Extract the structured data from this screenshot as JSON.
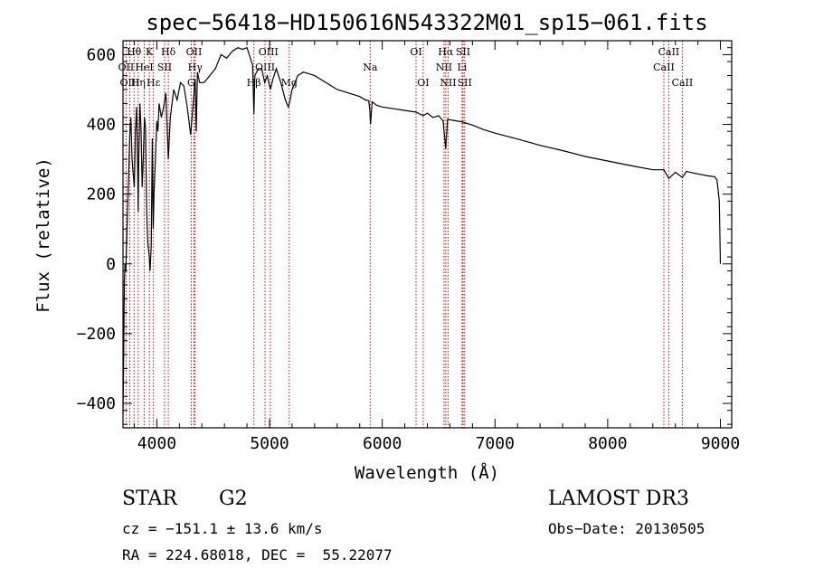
{
  "chart_data": {
    "type": "line",
    "title": "spec−56418−HD150616N543322M01_sp15−061.fits",
    "xlabel": "Wavelength (Å)",
    "ylabel": "Flux (relative)",
    "xlim": [
      3700,
      9100
    ],
    "ylim": [
      -470,
      640
    ],
    "xticks": [
      4000,
      5000,
      6000,
      7000,
      8000,
      9000
    ],
    "xtick_labels": [
      "4000",
      "5000",
      "6000",
      "7000",
      "8000",
      "9000"
    ],
    "yticks": [
      -400,
      -200,
      0,
      200,
      400,
      600
    ],
    "ytick_labels": [
      "−400",
      "−200",
      "0",
      "200",
      "400",
      "600"
    ],
    "series": [
      {
        "name": "spectrum",
        "x": [
          3700,
          3705,
          3712,
          3718,
          3725,
          3730,
          3740,
          3750,
          3760,
          3770,
          3780,
          3790,
          3800,
          3810,
          3820,
          3830,
          3835,
          3840,
          3850,
          3860,
          3870,
          3880,
          3890,
          3900,
          3910,
          3920,
          3930,
          3933,
          3940,
          3950,
          3960,
          3968,
          3975,
          3985,
          4000,
          4010,
          4020,
          4040,
          4060,
          4080,
          4102,
          4120,
          4150,
          4180,
          4210,
          4240,
          4270,
          4300,
          4320,
          4340,
          4350,
          4360,
          4380,
          4420,
          4470,
          4520,
          4570,
          4620,
          4670,
          4720,
          4760,
          4800,
          4830,
          4850,
          4861,
          4870,
          4900,
          4930,
          4957,
          4980,
          5007,
          5030,
          5060,
          5100,
          5140,
          5167,
          5183,
          5200,
          5250,
          5300,
          5350,
          5400,
          5500,
          5600,
          5700,
          5800,
          5850,
          5880,
          5890,
          5896,
          5910,
          5950,
          6000,
          6100,
          6200,
          6300,
          6363,
          6400,
          6450,
          6500,
          6540,
          6563,
          6580,
          6620,
          6700,
          6800,
          6900,
          7000,
          7200,
          7400,
          7600,
          7800,
          8000,
          8200,
          8400,
          8498,
          8542,
          8600,
          8662,
          8700,
          8800,
          8900,
          8950,
          8970,
          8990,
          9000
        ],
        "y": [
          -430,
          -300,
          -50,
          0,
          -20,
          30,
          150,
          250,
          370,
          420,
          300,
          260,
          220,
          380,
          450,
          280,
          150,
          300,
          460,
          390,
          220,
          300,
          420,
          390,
          150,
          60,
          30,
          20,
          -20,
          50,
          360,
          100,
          200,
          280,
          410,
          380,
          460,
          420,
          450,
          490,
          300,
          420,
          500,
          470,
          520,
          510,
          450,
          370,
          450,
          530,
          380,
          550,
          520,
          520,
          540,
          560,
          600,
          590,
          610,
          620,
          615,
          620,
          590,
          570,
          430,
          540,
          560,
          560,
          520,
          540,
          500,
          530,
          560,
          520,
          470,
          450,
          470,
          500,
          540,
          550,
          545,
          540,
          520,
          500,
          490,
          480,
          470,
          468,
          440,
          400,
          465,
          455,
          450,
          445,
          440,
          435,
          425,
          432,
          420,
          425,
          410,
          330,
          415,
          412,
          408,
          398,
          385,
          375,
          358,
          340,
          325,
          308,
          295,
          282,
          270,
          270,
          245,
          263,
          248,
          265,
          258,
          252,
          250,
          240,
          180,
          0
        ]
      }
    ],
    "line_annotations": [
      {
        "label": "Hθ",
        "wavelength": 3798,
        "row": 1
      },
      {
        "label": "K",
        "wavelength": 3934,
        "row": 1
      },
      {
        "label": "Hδ",
        "wavelength": 4102,
        "row": 1
      },
      {
        "label": "OII",
        "wavelength": 4330,
        "row": 1
      },
      {
        "label": "OIII",
        "wavelength": 4990,
        "row": 1
      },
      {
        "label": "OI",
        "wavelength": 6300,
        "row": 1
      },
      {
        "label": "Hα",
        "wavelength": 6563,
        "row": 1
      },
      {
        "label": "SII",
        "wavelength": 6717,
        "row": 1
      },
      {
        "label": "CaII",
        "wavelength": 8542,
        "row": 1
      },
      {
        "label": "OII",
        "wavelength": 3727,
        "row": 2
      },
      {
        "label": "HeI",
        "wavelength": 3889,
        "row": 2
      },
      {
        "label": "SII",
        "wavelength": 4069,
        "row": 2
      },
      {
        "label": "Hγ",
        "wavelength": 4340,
        "row": 2
      },
      {
        "label": "OIII",
        "wavelength": 4960,
        "row": 2
      },
      {
        "label": "Na",
        "wavelength": 5893,
        "row": 2
      },
      {
        "label": "NII",
        "wavelength": 6548,
        "row": 2
      },
      {
        "label": "Li",
        "wavelength": 6708,
        "row": 2
      },
      {
        "label": "CaII",
        "wavelength": 8498,
        "row": 2
      },
      {
        "label": "OIII",
        "wavelength": 3760,
        "row": 3
      },
      {
        "label": "Hη",
        "wavelength": 3835,
        "row": 3
      },
      {
        "label": "Hε",
        "wavelength": 3970,
        "row": 3
      },
      {
        "label": "G",
        "wavelength": 4305,
        "row": 3
      },
      {
        "label": "Hβ",
        "wavelength": 4861,
        "row": 3
      },
      {
        "label": "Mg",
        "wavelength": 5175,
        "row": 3
      },
      {
        "label": "OI",
        "wavelength": 6363,
        "row": 3
      },
      {
        "label": "NII",
        "wavelength": 6584,
        "row": 3
      },
      {
        "label": "SII",
        "wavelength": 6731,
        "row": 3
      },
      {
        "label": "CaII",
        "wavelength": 8662,
        "row": 3
      }
    ],
    "line_marker_wavelengths": [
      3727,
      3760,
      3798,
      3835,
      3889,
      3934,
      3970,
      4069,
      4102,
      4305,
      4330,
      4340,
      4861,
      4960,
      5007,
      5175,
      5893,
      6300,
      6363,
      6548,
      6563,
      6584,
      6708,
      6717,
      6731,
      8498,
      8542,
      8662
    ]
  },
  "info": {
    "object_class": "STAR",
    "subclass": "G2",
    "survey": "LAMOST DR3",
    "redshift_line": "cz = −151.1 ± 13.6 km/s",
    "obs_date_line": "Obs−Date: 20130505",
    "coords_line": "RA = 224.68018, DEC =  55.22077"
  },
  "colors": {
    "line": "#000000",
    "marker": "#cc0000",
    "axis": "#000000"
  }
}
